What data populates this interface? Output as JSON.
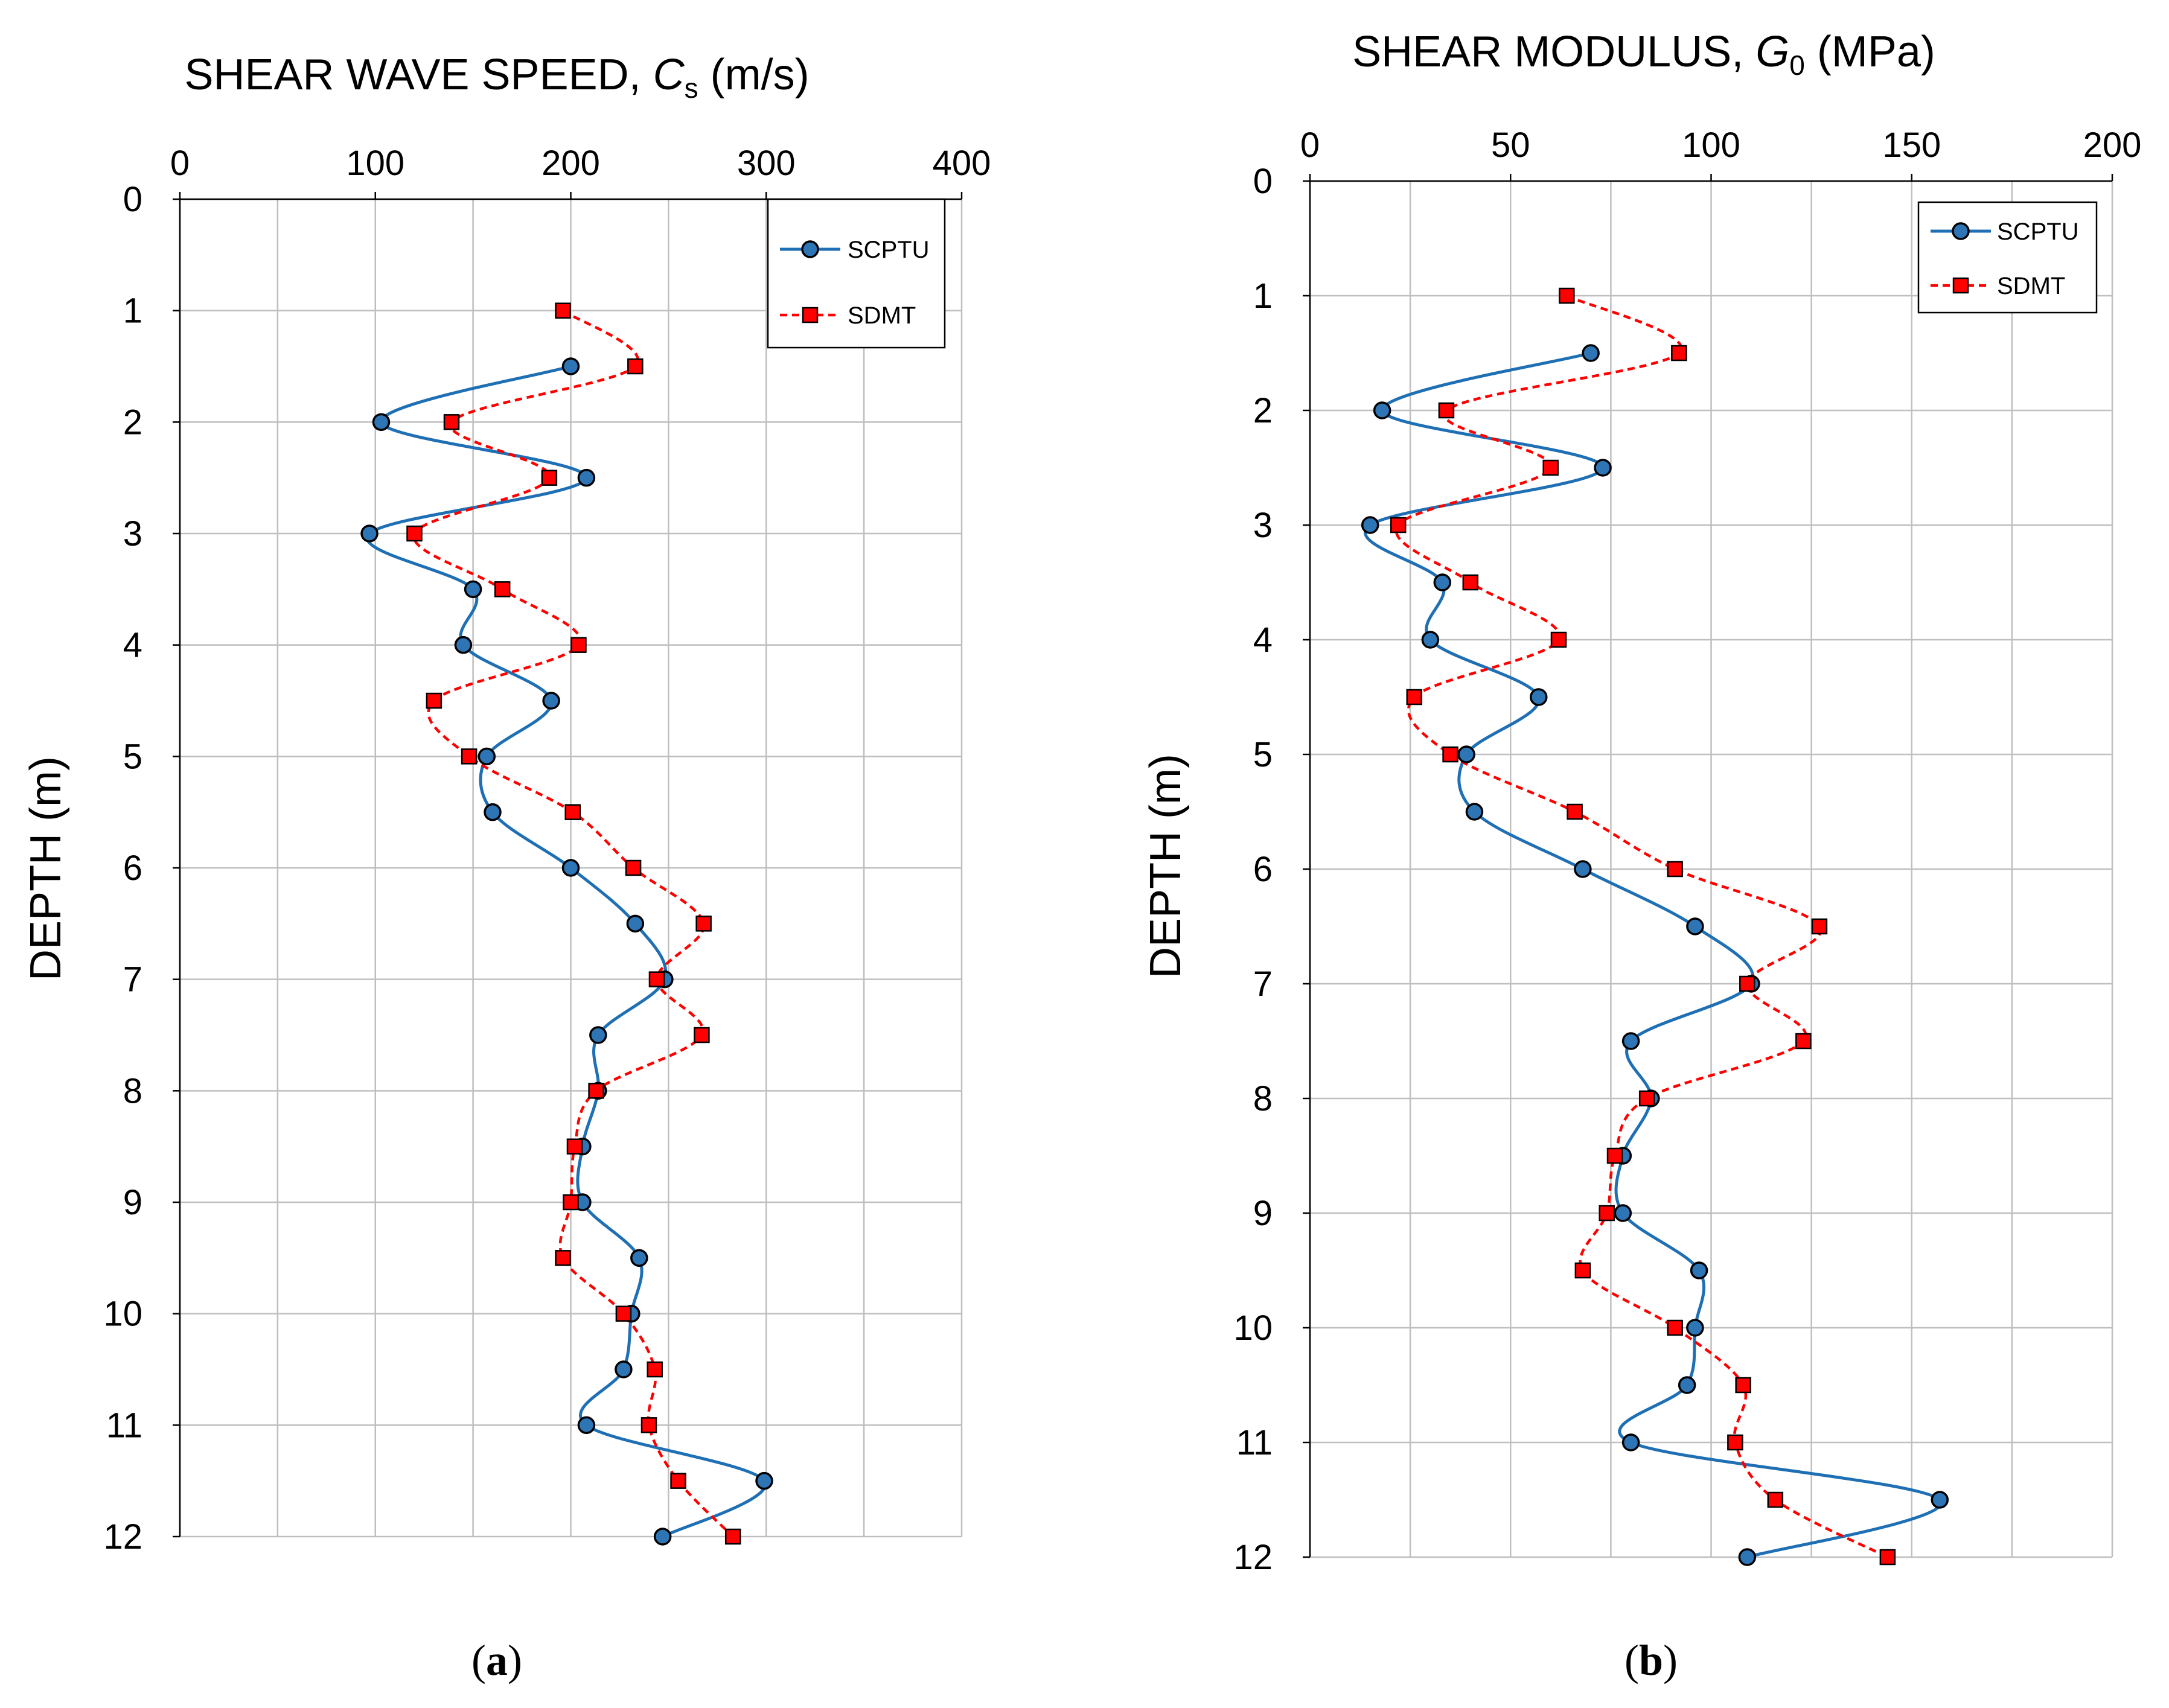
{
  "chart_data": [
    {
      "type": "line",
      "panel_label": "a",
      "title_main": "SHEAR WAVE SPEED, ",
      "title_var": "C",
      "title_sub": "s",
      "title_unit": " (m/s)",
      "xlabel_position": "top",
      "ylabel": "DEPTH (m)",
      "xlim": [
        0,
        400
      ],
      "ylim": [
        0,
        12
      ],
      "y_inverted": true,
      "xticks": [
        0,
        100,
        200,
        300,
        400
      ],
      "yticks": [
        0,
        1,
        2,
        3,
        4,
        5,
        6,
        7,
        8,
        9,
        10,
        11,
        12
      ],
      "x_gridlines": [
        0,
        50,
        100,
        150,
        200,
        250,
        300,
        350,
        400
      ],
      "grid": true,
      "legend_position": "top-right",
      "series": [
        {
          "name": "SCPTU",
          "color": "#1f6fb4",
          "marker_fill": "#2e75b6",
          "line_style": "solid",
          "marker": "circle",
          "points": [
            [
              200,
              1.5
            ],
            [
              103,
              2.0
            ],
            [
              208,
              2.5
            ],
            [
              97,
              3.0
            ],
            [
              150,
              3.5
            ],
            [
              145,
              4.0
            ],
            [
              190,
              4.5
            ],
            [
              157,
              5.0
            ],
            [
              160,
              5.5
            ],
            [
              200,
              6.0
            ],
            [
              233,
              6.5
            ],
            [
              248,
              7.0
            ],
            [
              214,
              7.5
            ],
            [
              214,
              8.0
            ],
            [
              206,
              8.5
            ],
            [
              206,
              9.0
            ],
            [
              235,
              9.5
            ],
            [
              231,
              10.0
            ],
            [
              227,
              10.5
            ],
            [
              208,
              11.0
            ],
            [
              299,
              11.5
            ],
            [
              247,
              12.0
            ]
          ]
        },
        {
          "name": "SDMT",
          "color": "#ff0000",
          "marker_fill": "#ff0000",
          "line_style": "dashed",
          "marker": "square",
          "points": [
            [
              196,
              1.0
            ],
            [
              233,
              1.5
            ],
            [
              139,
              2.0
            ],
            [
              189,
              2.5
            ],
            [
              120,
              3.0
            ],
            [
              165,
              3.5
            ],
            [
              204,
              4.0
            ],
            [
              130,
              4.5
            ],
            [
              148,
              5.0
            ],
            [
              201,
              5.5
            ],
            [
              232,
              6.0
            ],
            [
              268,
              6.5
            ],
            [
              244,
              7.0
            ],
            [
              267,
              7.5
            ],
            [
              213,
              8.0
            ],
            [
              202,
              8.5
            ],
            [
              200,
              9.0
            ],
            [
              196,
              9.5
            ],
            [
              227,
              10.0
            ],
            [
              243,
              10.5
            ],
            [
              240,
              11.0
            ],
            [
              255,
              11.5
            ],
            [
              283,
              12.0
            ]
          ]
        }
      ]
    },
    {
      "type": "line",
      "panel_label": "b",
      "title_main": "SHEAR MODULUS, ",
      "title_var": "G",
      "title_sub": "0",
      "title_unit": " (MPa)",
      "xlabel_position": "top",
      "ylabel": "DEPTH (m)",
      "xlim": [
        0,
        200
      ],
      "ylim": [
        0,
        12
      ],
      "y_inverted": true,
      "xticks": [
        0,
        50,
        100,
        150,
        200
      ],
      "yticks": [
        0,
        1,
        2,
        3,
        4,
        5,
        6,
        7,
        8,
        9,
        10,
        11,
        12
      ],
      "x_gridlines": [
        0,
        25,
        50,
        75,
        100,
        125,
        150,
        175,
        200
      ],
      "grid": true,
      "legend_position": "top-right",
      "series": [
        {
          "name": "SCPTU",
          "color": "#1f6fb4",
          "marker_fill": "#2e75b6",
          "line_style": "solid",
          "marker": "circle",
          "points": [
            [
              70,
              1.5
            ],
            [
              18,
              2.0
            ],
            [
              73,
              2.5
            ],
            [
              15,
              3.0
            ],
            [
              33,
              3.5
            ],
            [
              30,
              4.0
            ],
            [
              57,
              4.5
            ],
            [
              39,
              5.0
            ],
            [
              41,
              5.5
            ],
            [
              68,
              6.0
            ],
            [
              96,
              6.5
            ],
            [
              110,
              7.0
            ],
            [
              80,
              7.5
            ],
            [
              85,
              8.0
            ],
            [
              78,
              8.5
            ],
            [
              78,
              9.0
            ],
            [
              97,
              9.5
            ],
            [
              96,
              10.0
            ],
            [
              94,
              10.5
            ],
            [
              80,
              11.0
            ],
            [
              157,
              11.5
            ],
            [
              109,
              12.0
            ]
          ]
        },
        {
          "name": "SDMT",
          "color": "#ff0000",
          "marker_fill": "#ff0000",
          "line_style": "dashed",
          "marker": "square",
          "points": [
            [
              64,
              1.0
            ],
            [
              92,
              1.5
            ],
            [
              34,
              2.0
            ],
            [
              60,
              2.5
            ],
            [
              22,
              3.0
            ],
            [
              40,
              3.5
            ],
            [
              62,
              4.0
            ],
            [
              26,
              4.5
            ],
            [
              35,
              5.0
            ],
            [
              66,
              5.5
            ],
            [
              91,
              6.0
            ],
            [
              127,
              6.5
            ],
            [
              109,
              7.0
            ],
            [
              123,
              7.5
            ],
            [
              84,
              8.0
            ],
            [
              76,
              8.5
            ],
            [
              74,
              9.0
            ],
            [
              68,
              9.5
            ],
            [
              91,
              10.0
            ],
            [
              108,
              10.5
            ],
            [
              106,
              11.0
            ],
            [
              116,
              11.5
            ],
            [
              144,
              12.0
            ]
          ]
        }
      ]
    }
  ]
}
